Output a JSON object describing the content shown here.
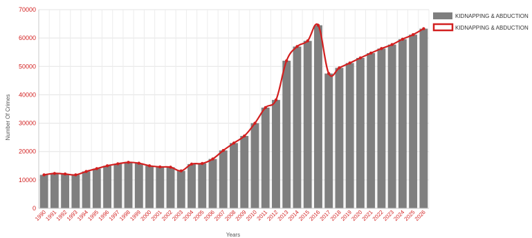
{
  "chart_data": {
    "type": "bar",
    "title": "",
    "xlabel": "Years",
    "ylabel": "Number Of Crimes",
    "ylim": [
      0,
      70000
    ],
    "yticks": [
      0,
      10000,
      20000,
      30000,
      40000,
      50000,
      60000,
      70000
    ],
    "grid": true,
    "legend_position": "top-right",
    "categories": [
      "1990",
      "1991",
      "1992",
      "1993",
      "1994",
      "1995",
      "1996",
      "1997",
      "1998",
      "1999",
      "2000",
      "2001",
      "2002",
      "2003",
      "2004",
      "2005",
      "2006",
      "2007",
      "2008",
      "2009",
      "2010",
      "2011",
      "2012",
      "2013",
      "2014",
      "2015",
      "2016",
      "2017",
      "2018",
      "2019",
      "2020",
      "2021",
      "2022",
      "2023",
      "2024",
      "2025",
      "2026"
    ],
    "series": [
      {
        "name": "KIDNAPPING & ABDUCTION",
        "kind": "bar",
        "color": "#7f7f7f",
        "values": [
          11800,
          12300,
          12100,
          11800,
          13000,
          14000,
          15000,
          15700,
          16200,
          15900,
          15000,
          14600,
          14500,
          13200,
          15600,
          15800,
          17400,
          20400,
          23000,
          25500,
          30000,
          35500,
          38200,
          52000,
          57000,
          59000,
          64500,
          47500,
          49500,
          51200,
          53000,
          54700,
          56300,
          57700,
          59600,
          61200,
          63300
        ]
      },
      {
        "name": "KIDNAPPING & ABDUCTION",
        "kind": "line",
        "color": "#d21f1f",
        "values": [
          11800,
          12300,
          12100,
          11800,
          13000,
          14000,
          15000,
          15700,
          16200,
          15900,
          15000,
          14600,
          14500,
          13200,
          15600,
          15800,
          17400,
          20400,
          23000,
          25500,
          30000,
          35500,
          38200,
          52000,
          57000,
          59000,
          64500,
          47500,
          49500,
          51200,
          53000,
          54700,
          56300,
          57700,
          59600,
          61200,
          63300
        ]
      }
    ]
  }
}
